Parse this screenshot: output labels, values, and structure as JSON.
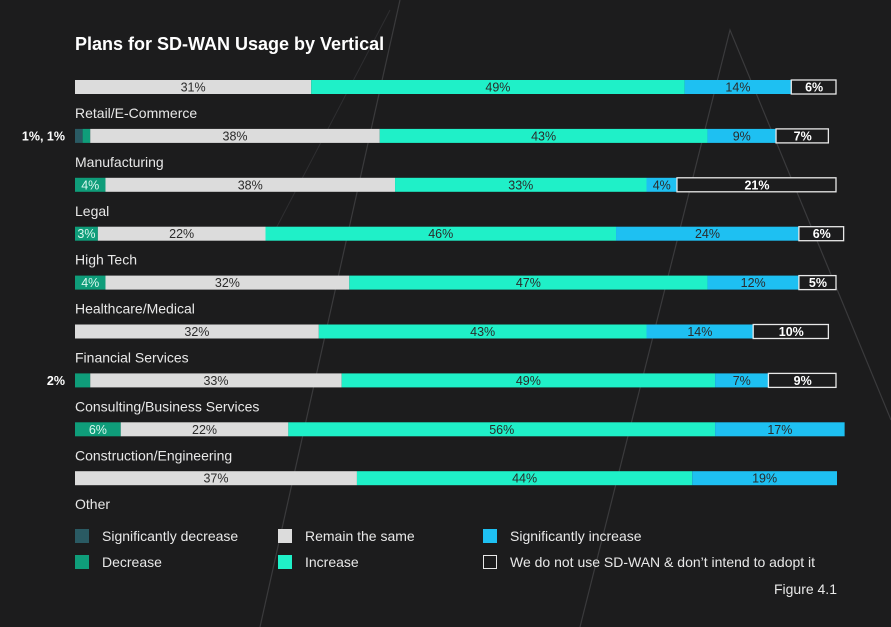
{
  "title": "Plans for SD-WAN Usage by Vertical",
  "figure_caption": "Figure 4.1",
  "colors": {
    "significantly_decrease": "#2a5a63",
    "decrease": "#0f9d7a",
    "remain_the_same": "#dcdcdc",
    "increase": "#1ff0c8",
    "significantly_increase": "#1ec0f2",
    "do_not_use": "#1c1c1d"
  },
  "legend": [
    {
      "label": "Significantly decrease",
      "key": "significantly_decrease"
    },
    {
      "label": "Remain the same",
      "key": "remain_the_same"
    },
    {
      "label": "Significantly increase",
      "key": "significantly_increase"
    },
    {
      "label": "Decrease",
      "key": "decrease"
    },
    {
      "label": "Increase",
      "key": "increase"
    },
    {
      "label": "We do not use SD-WAN & don’t intend to adopt it",
      "key": "do_not_use"
    }
  ],
  "chart_data": {
    "type": "bar",
    "orientation": "horizontal-stacked-100",
    "categories": [
      "Retail/E-Commerce",
      "Manufacturing",
      "Legal",
      "High Tech",
      "Healthcare/Medical",
      "Financial Services",
      "Consulting/Business Services",
      "Construction/Engineering",
      "Other"
    ],
    "series": [
      {
        "name": "Significantly decrease",
        "key": "significantly_decrease",
        "values": [
          0,
          1,
          0,
          0,
          0,
          0,
          0,
          0,
          0
        ],
        "labels": [
          "",
          "",
          "",
          "",
          "",
          "",
          "",
          "",
          ""
        ]
      },
      {
        "name": "Decrease",
        "key": "decrease",
        "values": [
          0,
          1,
          4,
          3,
          4,
          0,
          2,
          6,
          0
        ],
        "labels": [
          "",
          "",
          "4%",
          "3%",
          "4%",
          "",
          "",
          "6%",
          ""
        ]
      },
      {
        "name": "Remain the same",
        "key": "remain_the_same",
        "values": [
          31,
          38,
          38,
          22,
          32,
          32,
          33,
          22,
          37
        ],
        "labels": [
          "31%",
          "38%",
          "38%",
          "22%",
          "32%",
          "32%",
          "33%",
          "22%",
          "37%"
        ]
      },
      {
        "name": "Increase",
        "key": "increase",
        "values": [
          49,
          43,
          33,
          46,
          47,
          43,
          49,
          56,
          44
        ],
        "labels": [
          "49%",
          "43%",
          "33%",
          "46%",
          "47%",
          "43%",
          "49%",
          "56%",
          "44%"
        ]
      },
      {
        "name": "Significantly increase",
        "key": "significantly_increase",
        "values": [
          14,
          9,
          4,
          24,
          12,
          14,
          7,
          17,
          19
        ],
        "labels": [
          "14%",
          "9%",
          "4%",
          "24%",
          "12%",
          "14%",
          "7%",
          "17%",
          "19%"
        ]
      },
      {
        "name": "We do not use SD-WAN & don’t intend to adopt it",
        "key": "do_not_use",
        "values": [
          6,
          7,
          21,
          6,
          5,
          10,
          9,
          0,
          0
        ],
        "labels": [
          "6%",
          "7%",
          "21%",
          "6%",
          "5%",
          "10%",
          "9%",
          "",
          ""
        ]
      }
    ],
    "side_labels": [
      "",
      "1%, 1%",
      "",
      "",
      "",
      "",
      "2%",
      "",
      ""
    ],
    "xlim": [
      0,
      100
    ],
    "grid": false,
    "legend_position": "bottom"
  }
}
